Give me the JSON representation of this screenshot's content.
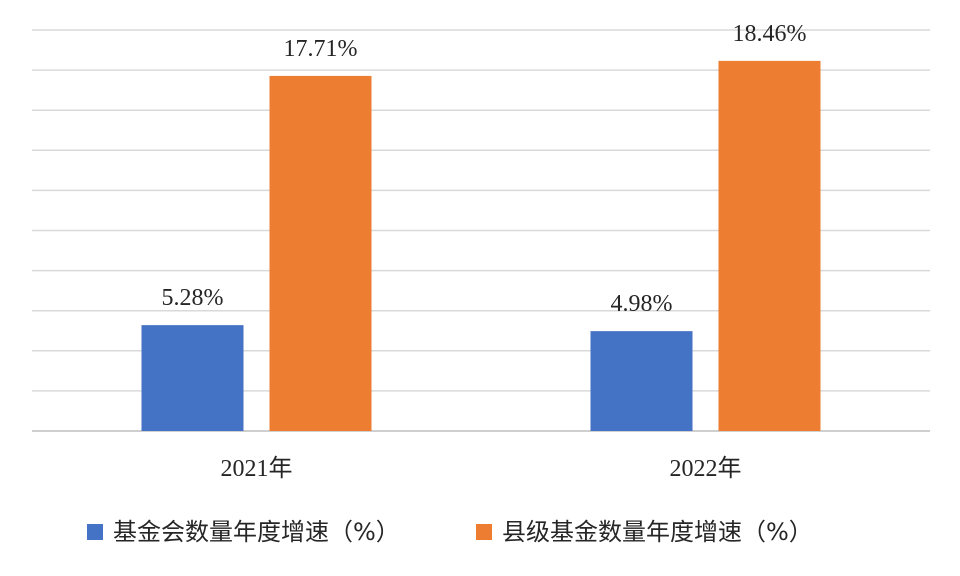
{
  "chart_data": {
    "type": "bar",
    "categories": [
      "2021年",
      "2022年"
    ],
    "series": [
      {
        "name": "基金会数量年度增速（%）",
        "values": [
          5.28,
          4.98
        ],
        "labels": [
          "5.28%",
          "4.98%"
        ],
        "color": "#4472c4"
      },
      {
        "name": "县级基金数量年度增速（%）",
        "values": [
          17.71,
          18.46
        ],
        "labels": [
          "17.71%",
          "18.46%"
        ],
        "color": "#ed7d31"
      }
    ],
    "ylim": [
      0,
      20
    ],
    "grid": true,
    "legend": "bottom",
    "title": "",
    "xlabel": "",
    "ylabel": ""
  }
}
